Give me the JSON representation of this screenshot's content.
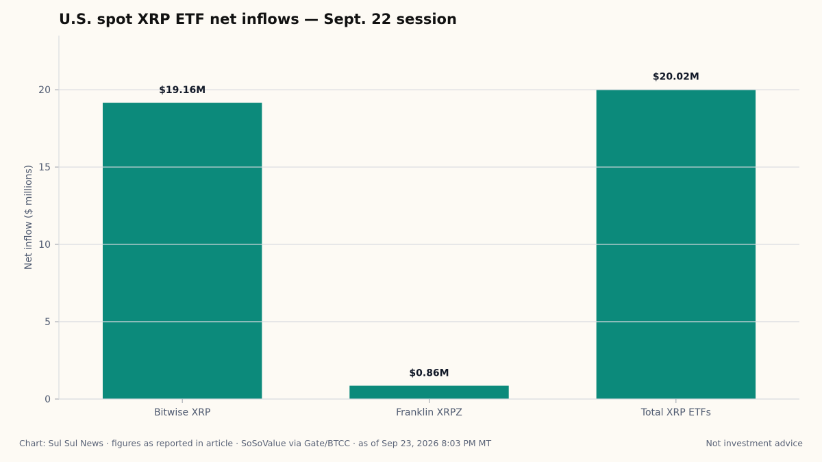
{
  "title": "U.S. spot XRP ETF net inflows — Sept. 22 session",
  "footer": {
    "source": "Chart: Sul Sul News · figures as reported in article · SoSoValue via Gate/BTCC · as of Sep 23, 2026 8:03 PM MT",
    "disclaimer": "Not investment advice"
  },
  "colors": {
    "bar": "#0c8a7b",
    "grid": "#d9dbdf",
    "axis_text": "#4f5a70",
    "label_text": "#111827"
  },
  "chart_data": {
    "type": "bar",
    "categories": [
      "Bitwise XRP",
      "Franklin XRPZ",
      "Total XRP ETFs"
    ],
    "values": [
      19.16,
      0.86,
      20.02
    ],
    "data_labels": [
      "$19.16M",
      "$0.86M",
      "$20.02M"
    ],
    "ylabel": "Net inflow ($ millions)",
    "yticks": [
      0,
      5,
      10,
      15,
      20
    ],
    "ylim": [
      0,
      23.5
    ],
    "grid": "horizontal"
  }
}
